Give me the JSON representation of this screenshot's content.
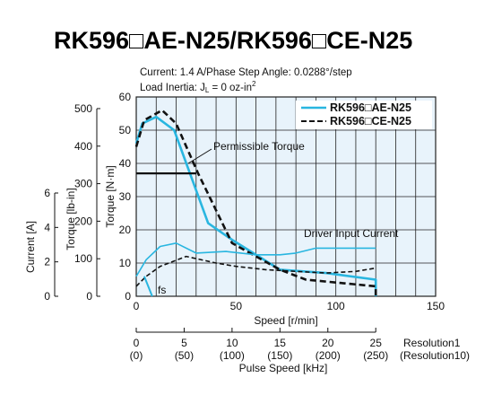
{
  "title": "RK596□AE-N25/RK596□CE-N25",
  "conditions": {
    "line1": "Current: 1.4 A/Phase   Step Angle: 0.0288°/step",
    "line2_prefix": "Load Inertia: J",
    "line2_sub": "L",
    "line2_suffix": " = 0 oz-in",
    "line2_sup": "2"
  },
  "colors": {
    "ae_series": "#29b6e0",
    "ce_series": "#111111",
    "plot_bg": "#e8f3fb",
    "grid": "#222222"
  },
  "chart_data": {
    "type": "line",
    "xlabel": "Speed [r/min]",
    "xlim": [
      0,
      150
    ],
    "xticks": [
      0,
      50,
      100,
      150
    ],
    "ylabel_nm": "Torque [N·m]",
    "ylim_nm": [
      0,
      60
    ],
    "yticks_nm": [
      0,
      10,
      20,
      30,
      40,
      50,
      60
    ],
    "ylabel_lbin": "Torque [lb-in]",
    "yticks_lbin": [
      0,
      100,
      200,
      300,
      400,
      500
    ],
    "ylabel_current": "Current [A]",
    "yticks_current": [
      0,
      2,
      4,
      6
    ],
    "pulse_axis": {
      "label": "Pulse Speed [kHz]",
      "ticks_res1": [
        "0",
        "5",
        "10",
        "15",
        "20",
        "25"
      ],
      "ticks_res10": [
        "(0)",
        "(50)",
        "(100)",
        "(150)",
        "(200)",
        "(250)"
      ],
      "res1_label": "Resolution1",
      "res10_label": "(Resolution10)"
    },
    "legend_position": "top-right",
    "series": [
      {
        "name": "RK596□AE-N25",
        "kind": "torque",
        "style": "solid",
        "x": [
          0,
          3,
          10,
          19,
          36,
          48,
          72,
          95,
          120,
          120
        ],
        "y": [
          46,
          52,
          54,
          50,
          22,
          17,
          8,
          7,
          5,
          0
        ]
      },
      {
        "name": "RK596□CE-N25",
        "kind": "torque",
        "style": "dashed",
        "x": [
          0,
          4,
          13,
          20,
          31,
          48,
          72,
          85,
          120,
          120
        ],
        "y": [
          45,
          53,
          56,
          52,
          37,
          16,
          8,
          5,
          3,
          0
        ]
      },
      {
        "kind": "permissible-torque",
        "style": "solid",
        "x": [
          0,
          30
        ],
        "y": [
          37,
          37
        ]
      },
      {
        "kind": "driver-input-current-ae",
        "style": "solid",
        "x": [
          0,
          5,
          12,
          20,
          30,
          45,
          60,
          72,
          80,
          90,
          100,
          120
        ],
        "y": [
          6,
          11,
          15,
          16,
          13,
          13.5,
          12.5,
          12.5,
          13,
          14.5,
          14.5,
          14.5
        ]
      },
      {
        "kind": "driver-input-current-ce",
        "style": "dashed",
        "x": [
          0,
          5,
          12,
          25,
          40,
          50,
          65,
          80,
          95,
          110,
          120
        ],
        "y": [
          3,
          6,
          9,
          12,
          10,
          9,
          8,
          7.5,
          7,
          7.5,
          8.5
        ]
      }
    ],
    "annotations": {
      "permissible": "Permissible Torque",
      "current": "Driver Input Current",
      "fs": "fs"
    }
  }
}
